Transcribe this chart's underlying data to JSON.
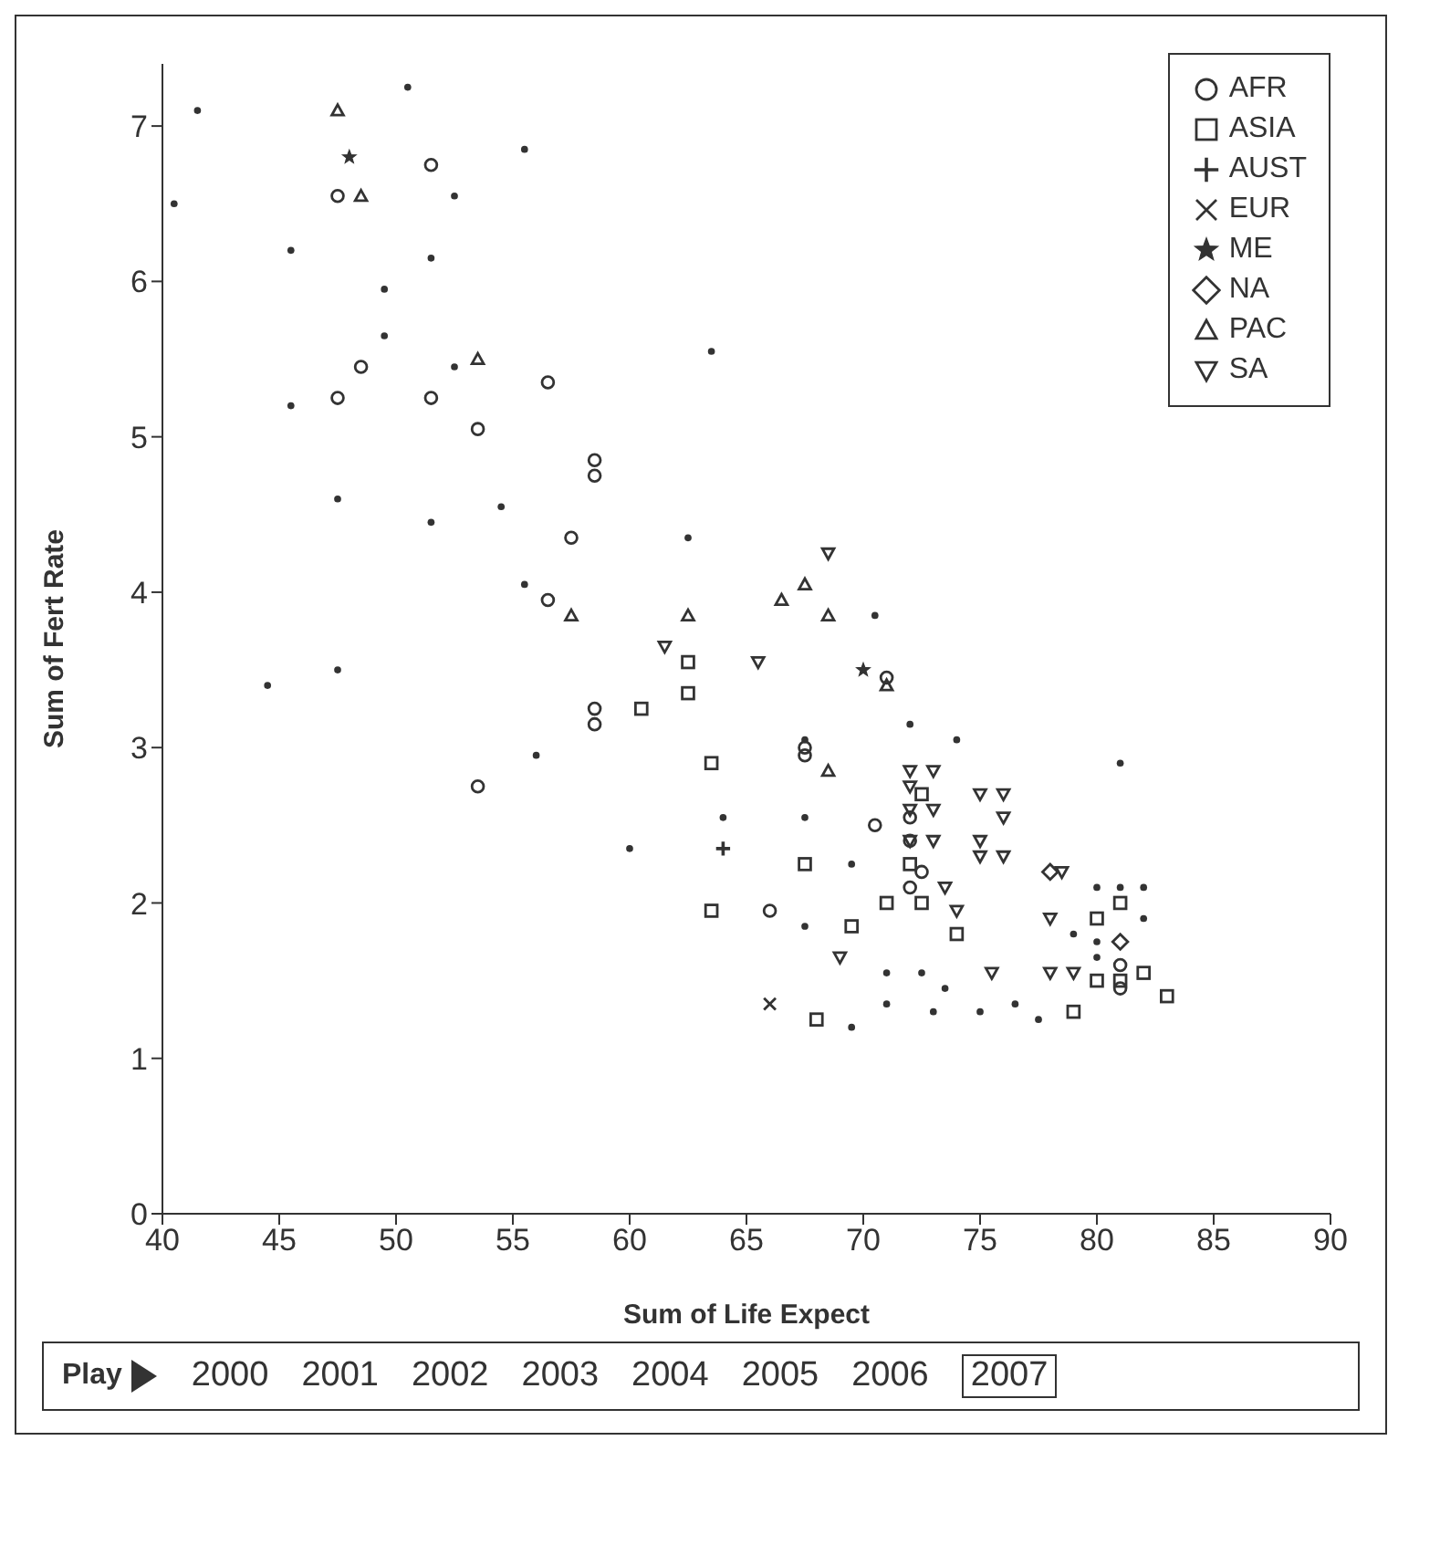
{
  "chart_data": {
    "type": "scatter",
    "xlabel": "Sum of Life Expect",
    "ylabel": "Sum of Fert Rate",
    "xlim": [
      40,
      90
    ],
    "xticks": [
      40,
      45,
      50,
      55,
      60,
      65,
      70,
      75,
      80,
      85,
      90
    ],
    "ylim": [
      0,
      7.4
    ],
    "yticks": [
      0,
      1,
      2,
      3,
      4,
      5,
      6,
      7
    ],
    "legend": "top right",
    "series": [
      {
        "name": "AFR",
        "color": "#333333",
        "marker": "circle",
        "x": [
          47.5,
          51.5,
          48.5,
          47.5,
          51.5,
          53.5,
          56.5,
          58.5,
          58.5,
          57.5,
          56.5,
          58.5,
          58.5,
          53.5,
          66,
          67.5,
          67.5,
          70.5,
          72,
          72,
          72,
          72.5,
          71,
          81,
          81
        ],
        "values": [
          6.55,
          6.75,
          5.45,
          5.25,
          5.25,
          5.05,
          5.35,
          4.85,
          4.75,
          4.35,
          3.95,
          3.25,
          3.15,
          2.75,
          1.95,
          3.0,
          2.95,
          2.5,
          2.55,
          2.4,
          2.1,
          2.2,
          3.45,
          1.6,
          1.45
        ]
      },
      {
        "name": "ASIA",
        "color": "#333333",
        "marker": "square",
        "x": [
          62.5,
          62.5,
          60.5,
          63.5,
          63.5,
          67.5,
          69.5,
          71,
          72,
          74,
          68,
          72.5,
          72.5,
          79,
          80,
          81,
          82,
          83,
          80,
          81
        ],
        "values": [
          3.55,
          3.35,
          3.25,
          2.9,
          1.95,
          2.25,
          1.85,
          2.0,
          2.25,
          1.8,
          1.25,
          2.7,
          2.0,
          1.3,
          1.5,
          1.5,
          1.55,
          1.4,
          1.9,
          2.0
        ]
      },
      {
        "name": "AUST",
        "color": "#333333",
        "marker": "plus",
        "x": [
          64
        ],
        "values": [
          2.35
        ]
      },
      {
        "name": "EUR",
        "color": "#333333",
        "marker": "cross",
        "x": [
          66
        ],
        "values": [
          1.35
        ]
      },
      {
        "name": "ME",
        "color": "#333333",
        "marker": "star",
        "x": [
          48,
          70
        ],
        "values": [
          6.8,
          3.5
        ]
      },
      {
        "name": "NA",
        "color": "#333333",
        "marker": "diamond",
        "x": [
          78,
          81
        ],
        "values": [
          2.2,
          1.75
        ]
      },
      {
        "name": "PAC",
        "color": "#333333",
        "marker": "triangle",
        "x": [
          47.5,
          48.5,
          53.5,
          57.5,
          62.5,
          66.5,
          67.5,
          68.5,
          68.5,
          71
        ],
        "values": [
          7.1,
          6.55,
          5.5,
          3.85,
          3.85,
          3.95,
          4.05,
          3.85,
          2.85,
          3.4
        ]
      },
      {
        "name": "SA",
        "color": "#333333",
        "marker": "triangle-down",
        "x": [
          61.5,
          65.5,
          68.5,
          72,
          72,
          72,
          72,
          73,
          73,
          73,
          73.5,
          74,
          75,
          75,
          75,
          76,
          76,
          76,
          78.5,
          78,
          69,
          75.5,
          78,
          79
        ],
        "values": [
          3.65,
          3.55,
          4.25,
          2.85,
          2.75,
          2.6,
          2.4,
          2.85,
          2.6,
          2.4,
          2.1,
          1.95,
          2.7,
          2.4,
          2.3,
          2.7,
          2.55,
          2.3,
          2.2,
          1.9,
          1.65,
          1.55,
          1.55,
          1.55
        ]
      },
      {
        "color": "#333333",
        "marker": "dot",
        "x": [
          40.5,
          41.5,
          45.5,
          45.5,
          47.5,
          47.5,
          44.5,
          50.5,
          52.5,
          51.5,
          49.5,
          49.5,
          52.5,
          51.5,
          54.5,
          55.5,
          55.5,
          56,
          60,
          62.5,
          63.5,
          67.5,
          67.5,
          70.5,
          69.5,
          67.5,
          64,
          72,
          74,
          73,
          71,
          69.5,
          71,
          72.5,
          73.5,
          75,
          76.5,
          77.5,
          79,
          80,
          81,
          82,
          80,
          80,
          82,
          81
        ],
        "values": [
          6.5,
          7.1,
          6.2,
          5.2,
          4.6,
          3.5,
          3.4,
          7.25,
          6.55,
          6.15,
          5.95,
          5.65,
          5.45,
          4.45,
          4.55,
          6.85,
          4.05,
          2.95,
          2.35,
          4.35,
          5.55,
          3.05,
          2.55,
          3.85,
          2.25,
          1.85,
          2.55,
          3.15,
          3.05,
          1.3,
          1.35,
          1.2,
          1.55,
          1.55,
          1.45,
          1.3,
          1.35,
          1.25,
          1.8,
          2.1,
          2.1,
          2.1,
          1.75,
          1.65,
          1.9,
          2.9
        ]
      }
    ],
    "annotations": [
      "Play",
      "2000",
      "2001",
      "2002",
      "2003",
      "2004",
      "2005",
      "2006",
      "2007"
    ]
  }
}
